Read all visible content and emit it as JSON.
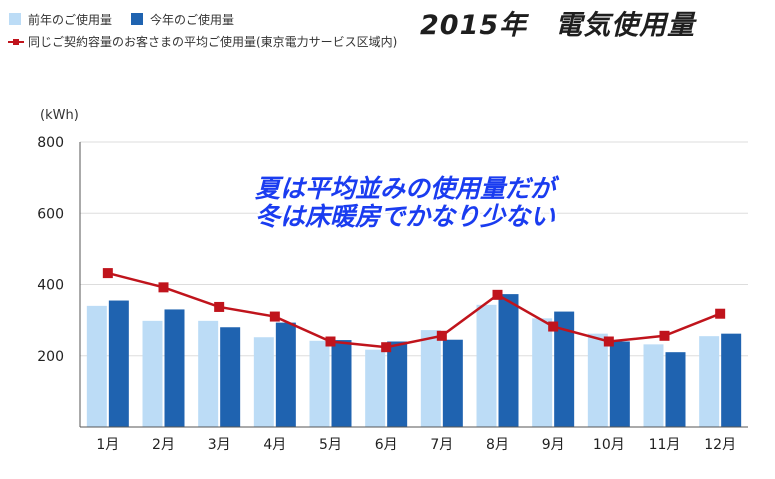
{
  "title": "2015年　電気使用量",
  "legend": {
    "prev_year": "前年のご使用量",
    "this_year": "今年のご使用量",
    "average": "同じご契約容量のお客さまの平均ご使用量(東京電力サービス区域内)"
  },
  "annotation": {
    "line1": "夏は平均並みの使用量だが",
    "line2": "冬は床暖房でかなり少ない"
  },
  "colors": {
    "prev_year": "#bcdcf6",
    "this_year": "#1f63b0",
    "average": "#c0141c",
    "annotation": "#1a3cf0"
  },
  "chart_data": {
    "type": "bar",
    "title": "2015年　電気使用量",
    "ylabel": "(kWh)",
    "xlabel": "",
    "ylim": [
      0,
      800
    ],
    "yticks": [
      200,
      400,
      600,
      800
    ],
    "grid": true,
    "legend_position": "top-left",
    "categories": [
      "1月",
      "2月",
      "3月",
      "4月",
      "5月",
      "6月",
      "7月",
      "8月",
      "9月",
      "10月",
      "11月",
      "12月"
    ],
    "series": [
      {
        "name": "前年のご使用量",
        "type": "bar",
        "values": [
          340,
          298,
          298,
          252,
          242,
          217,
          272,
          343,
          305,
          262,
          232,
          255
        ]
      },
      {
        "name": "今年のご使用量",
        "type": "bar",
        "values": [
          355,
          330,
          280,
          293,
          244,
          240,
          245,
          373,
          324,
          240,
          210,
          262
        ]
      },
      {
        "name": "同じご契約容量のお客さまの平均ご使用量(東京電力サービス区域内)",
        "type": "line",
        "values": [
          432,
          392,
          337,
          310,
          240,
          224,
          256,
          371,
          282,
          240,
          256,
          318
        ]
      }
    ]
  }
}
